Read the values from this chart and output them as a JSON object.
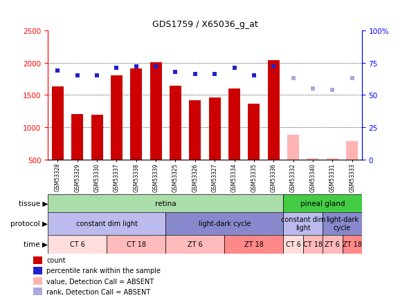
{
  "title": "GDS1759 / X65036_g_at",
  "samples": [
    "GSM53328",
    "GSM53329",
    "GSM53330",
    "GSM53337",
    "GSM53338",
    "GSM53339",
    "GSM53325",
    "GSM53326",
    "GSM53327",
    "GSM53334",
    "GSM53335",
    "GSM53336",
    "GSM53332",
    "GSM53340",
    "GSM53331",
    "GSM53333"
  ],
  "bar_values": [
    1630,
    1200,
    1190,
    1800,
    1910,
    2010,
    1640,
    1420,
    1460,
    1600,
    1360,
    2040,
    880,
    520,
    520,
    790
  ],
  "bar_colors": [
    "#cc0000",
    "#cc0000",
    "#cc0000",
    "#cc0000",
    "#cc0000",
    "#cc0000",
    "#cc0000",
    "#cc0000",
    "#cc0000",
    "#cc0000",
    "#cc0000",
    "#cc0000",
    "#ffb3b3",
    "#ffb3b3",
    "#ffb3b3",
    "#ffb3b3"
  ],
  "percentile_values": [
    69,
    65,
    65,
    71,
    72,
    72,
    68,
    66,
    66,
    71,
    65,
    72,
    63,
    55,
    54,
    63
  ],
  "percentile_colors": [
    "#2222cc",
    "#2222cc",
    "#2222cc",
    "#2222cc",
    "#2222cc",
    "#2222cc",
    "#2222cc",
    "#2222cc",
    "#2222cc",
    "#2222cc",
    "#2222cc",
    "#2222cc",
    "#aaaadd",
    "#aaaadd",
    "#aaaadd",
    "#aaaadd"
  ],
  "ylim_left": [
    500,
    2500
  ],
  "ylim_right": [
    0,
    100
  ],
  "yticks_left": [
    500,
    1000,
    1500,
    2000,
    2500
  ],
  "yticks_right": [
    0,
    25,
    50,
    75,
    100
  ],
  "grid_lines": [
    1000,
    1500,
    2000
  ],
  "tissue_groups": [
    {
      "label": "retina",
      "start": 0,
      "end": 12,
      "color": "#aaddaa"
    },
    {
      "label": "pineal gland",
      "start": 12,
      "end": 16,
      "color": "#44cc44"
    }
  ],
  "protocol_groups": [
    {
      "label": "constant dim light",
      "start": 0,
      "end": 6,
      "color": "#bbbbee"
    },
    {
      "label": "light-dark cycle",
      "start": 6,
      "end": 12,
      "color": "#8888cc"
    },
    {
      "label": "constant dim\nlight",
      "start": 12,
      "end": 14,
      "color": "#bbbbee"
    },
    {
      "label": "light-dark\ncycle",
      "start": 14,
      "end": 16,
      "color": "#8888cc"
    }
  ],
  "time_groups": [
    {
      "label": "CT 6",
      "start": 0,
      "end": 3,
      "color": "#ffdddd"
    },
    {
      "label": "CT 18",
      "start": 3,
      "end": 6,
      "color": "#ffbbbb"
    },
    {
      "label": "ZT 6",
      "start": 6,
      "end": 9,
      "color": "#ffbbbb"
    },
    {
      "label": "ZT 18",
      "start": 9,
      "end": 12,
      "color": "#ff8888"
    },
    {
      "label": "CT 6",
      "start": 12,
      "end": 13,
      "color": "#ffdddd"
    },
    {
      "label": "CT 18",
      "start": 13,
      "end": 14,
      "color": "#ffbbbb"
    },
    {
      "label": "ZT 6",
      "start": 14,
      "end": 15,
      "color": "#ffbbbb"
    },
    {
      "label": "ZT 18",
      "start": 15,
      "end": 16,
      "color": "#ff8888"
    }
  ],
  "legend_items": [
    {
      "color": "#cc0000",
      "label": "count"
    },
    {
      "color": "#2222cc",
      "label": "percentile rank within the sample"
    },
    {
      "color": "#ffb3b3",
      "label": "value, Detection Call = ABSENT"
    },
    {
      "color": "#aaaadd",
      "label": "rank, Detection Call = ABSENT"
    }
  ],
  "fig_width": 6.01,
  "fig_height": 4.35,
  "dpi": 100
}
